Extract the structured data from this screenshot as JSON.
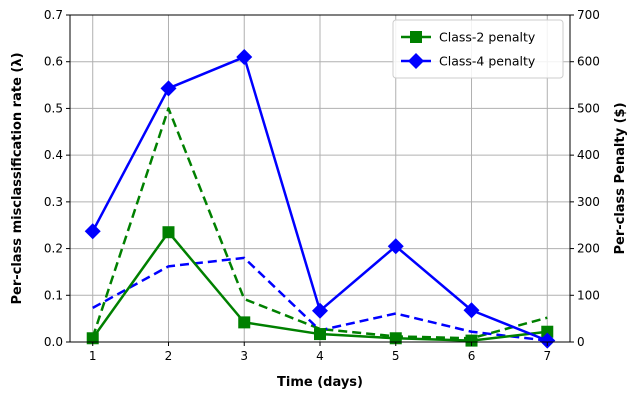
{
  "chart_data": {
    "type": "line",
    "x": [
      1,
      2,
      3,
      4,
      5,
      6,
      7
    ],
    "xlabel": "Time (days)",
    "ylabel": "Per-class misclassification rate (λ)",
    "ylabel_right": "Per-class Penalty ($)",
    "xlim": [
      0.7,
      7.3
    ],
    "ylim": [
      0,
      0.7
    ],
    "ylim_right": [
      0,
      700
    ],
    "x_ticks": [
      "1",
      "2",
      "3",
      "4",
      "5",
      "6",
      "7"
    ],
    "y_ticks": [
      "0.0",
      "0.1",
      "0.2",
      "0.3",
      "0.4",
      "0.5",
      "0.6",
      "0.7"
    ],
    "y_right_ticks": [
      "0",
      "100",
      "200",
      "300",
      "400",
      "500",
      "600",
      "700"
    ],
    "grid": true,
    "legend_position": "top-right",
    "series": [
      {
        "name": "Class-2 penalty",
        "axis": "right",
        "style": "solid",
        "marker": "square",
        "color": "#008000",
        "values": [
          8,
          235,
          42,
          17,
          8,
          3,
          22
        ]
      },
      {
        "name": "Class-4 penalty",
        "axis": "right",
        "style": "solid",
        "marker": "diamond",
        "color": "#0000ff",
        "values": [
          237,
          543,
          610,
          67,
          205,
          68,
          3
        ]
      },
      {
        "axis": "left",
        "style": "dashed",
        "marker": "none",
        "color": "#008000",
        "values": [
          0.01,
          0.5,
          0.092,
          0.028,
          0.012,
          0.008,
          0.052
        ]
      },
      {
        "axis": "left",
        "style": "dashed",
        "marker": "none",
        "color": "#0000ff",
        "values": [
          0.073,
          0.162,
          0.18,
          0.025,
          0.061,
          0.022,
          0.003
        ]
      }
    ]
  }
}
